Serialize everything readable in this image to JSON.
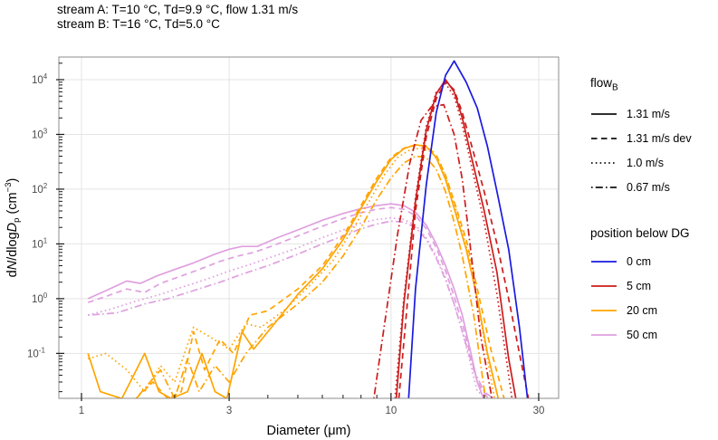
{
  "title_block": {
    "line1": "stream A: T=10 °C, Td=9.9 °C, flow 1.31 m/s",
    "line2": "stream B: T=16 °C, Td=5.0 °C"
  },
  "legend_flow": {
    "title_main": "flow",
    "title_sub": "B",
    "items": [
      {
        "label": "1.31 m/s",
        "dash": "solid"
      },
      {
        "label": "1.31 m/s dev",
        "dash": "dashed"
      },
      {
        "label": "1.0 m/s",
        "dash": "dotted"
      },
      {
        "label": "0.67 m/s",
        "dash": "dotdash"
      }
    ]
  },
  "legend_position": {
    "title": "position below DG",
    "items": [
      {
        "label": "0 cm",
        "color": "#1a1ae0"
      },
      {
        "label": "5 cm",
        "color": "#cc1c1c"
      },
      {
        "label": "20 cm",
        "color": "#ffa400"
      },
      {
        "label": "50 cm",
        "color": "#dfa0df"
      }
    ]
  },
  "chart_data": {
    "type": "line",
    "xlabel": "Diameter (μm)",
    "ylabel_parts": [
      {
        "t": "d"
      },
      {
        "t": "N",
        "style": "italic"
      },
      {
        "t": "/dlog"
      },
      {
        "t": "D",
        "style": "italic"
      },
      {
        "t": "p",
        "pos": "sub"
      },
      {
        "t": " (cm"
      },
      {
        "t": "−3",
        "pos": "sup"
      },
      {
        "t": ")"
      }
    ],
    "xscale": "log",
    "yscale": "log",
    "xlim": [
      0.845,
      34.8
    ],
    "ylim": [
      0.0151,
      25900
    ],
    "xticks_major": [
      1,
      3,
      10,
      30
    ],
    "xtick_labels": [
      "1",
      "3",
      "10",
      "30"
    ],
    "xticks_minor": [
      2,
      4,
      5,
      6,
      7,
      8,
      9,
      20
    ],
    "ytick_exponents": [
      -1,
      0,
      1,
      2,
      3,
      4
    ],
    "grid": "major",
    "colors": {
      "grid": "#e4e4e4",
      "panel_border": "#8c8c8c",
      "tick": "#1a1a1a",
      "tick_label": "#4a4a4a"
    },
    "line_styles": {
      "solid": "",
      "dashed": "6.5,4.5",
      "dotted": "1.6,3.2",
      "dotdash": "1.6,3.2,8,3.2"
    },
    "series": [
      {
        "name": "50cm 1.31 m/s",
        "position": "50 cm",
        "flow": "1.31 m/s",
        "color": "#dfa0df",
        "dash": "solid",
        "x": [
          1.05,
          1.2,
          1.4,
          1.55,
          1.75,
          2,
          2.3,
          2.7,
          3,
          3.3,
          3.7,
          4.3,
          5,
          6,
          7,
          8,
          9,
          10,
          11,
          12,
          13,
          14,
          15,
          16,
          17,
          18,
          19,
          19.9
        ],
        "y": [
          1,
          1.4,
          2.1,
          1.9,
          2.6,
          3.4,
          4.5,
          6.5,
          8,
          9,
          9,
          13,
          18,
          27,
          36,
          44,
          50,
          54,
          50,
          38,
          22,
          10,
          4,
          1.5,
          0.5,
          0.12,
          0.03,
          0.015
        ]
      },
      {
        "name": "50cm 1.31 m/s dev",
        "position": "50 cm",
        "flow": "1.31 m/s dev",
        "color": "#dfa0df",
        "dash": "dashed",
        "x": [
          1.05,
          1.2,
          1.4,
          1.6,
          1.8,
          2.1,
          2.4,
          2.8,
          3.2,
          3.6,
          4.2,
          5,
          6,
          7,
          8,
          9,
          10,
          11,
          12,
          13,
          14,
          15,
          16,
          17,
          18,
          19,
          20.6
        ],
        "y": [
          0.85,
          1.1,
          1.5,
          1.3,
          1.9,
          2.6,
          3.4,
          4.8,
          6,
          7,
          9.5,
          14,
          21,
          29,
          37,
          43,
          46,
          43,
          33,
          19,
          8.5,
          3.2,
          1.1,
          0.35,
          0.1,
          0.03,
          0.015
        ]
      },
      {
        "name": "50cm 1.0 m/s",
        "position": "50 cm",
        "flow": "1.0 m/s",
        "color": "#dfa0df",
        "dash": "dotted",
        "x": [
          1.05,
          1.25,
          1.5,
          1.8,
          2.1,
          2.5,
          3,
          3.5,
          4.2,
          5,
          6,
          7,
          8,
          9,
          10,
          11,
          12,
          13,
          14,
          15,
          16,
          17,
          18,
          19,
          20.9
        ],
        "y": [
          0.5,
          0.65,
          0.9,
          1.2,
          1.6,
          2.2,
          3.2,
          4.2,
          6,
          8.5,
          13,
          18,
          24,
          28,
          30,
          28,
          22,
          13,
          6,
          2.4,
          0.8,
          0.25,
          0.07,
          0.02,
          0.015
        ]
      },
      {
        "name": "50cm 0.67 m/s",
        "position": "50 cm",
        "flow": "0.67 m/s",
        "color": "#dfa0df",
        "dash": "dotdash",
        "x": [
          1.05,
          1.3,
          1.6,
          1.9,
          2.3,
          2.8,
          3.3,
          4,
          5,
          6,
          7,
          8,
          9,
          10,
          11,
          12,
          13,
          14,
          15,
          16,
          17,
          18.5,
          20,
          21.4
        ],
        "y": [
          0.5,
          0.55,
          0.8,
          1,
          1.4,
          2,
          2.8,
          4,
          6.5,
          10,
          14,
          19,
          23,
          26,
          25,
          20,
          12,
          5.5,
          2.2,
          0.8,
          0.25,
          0.05,
          0.02,
          0.015
        ]
      },
      {
        "name": "20cm 1.31 m/s",
        "position": "20 cm",
        "flow": "1.31 m/s",
        "color": "#ffa400",
        "dash": "solid",
        "x": [
          1.05,
          1.15,
          1.35,
          1.6,
          1.78,
          1.95,
          2.2,
          2.45,
          2.7,
          2.95,
          3.3,
          3.6,
          4.2,
          5,
          6,
          7,
          8,
          9,
          10,
          11,
          12,
          13,
          14,
          15,
          16,
          17.5,
          19,
          20.5,
          22.2
        ],
        "y": [
          0.1,
          0.02,
          0.015,
          0.1,
          0.02,
          0.015,
          0.02,
          0.1,
          0.02,
          0.015,
          0.25,
          0.12,
          0.35,
          1.2,
          3.5,
          12,
          45,
          140,
          350,
          550,
          650,
          600,
          380,
          150,
          45,
          8,
          1,
          0.1,
          0.015
        ]
      },
      {
        "name": "20cm 1.31 m/s dev",
        "position": "20 cm",
        "flow": "1.31 m/s dev",
        "color": "#ffa400",
        "dash": "dashed",
        "x": [
          1.5,
          1.7,
          1.9,
          2.1,
          2.3,
          2.5,
          2.8,
          3.1,
          3.5,
          4,
          5,
          6,
          7,
          8,
          9,
          10,
          11,
          12,
          13,
          14,
          15,
          16,
          17.5,
          19,
          21,
          23.2
        ],
        "y": [
          0.015,
          0.03,
          0.015,
          0.02,
          0.25,
          0.05,
          0.18,
          0.1,
          0.5,
          0.6,
          1.5,
          4,
          14,
          50,
          160,
          380,
          560,
          640,
          620,
          420,
          180,
          60,
          12,
          1.5,
          0.12,
          0.015
        ]
      },
      {
        "name": "20cm 1.0 m/s",
        "position": "20 cm",
        "flow": "1.0 m/s",
        "color": "#ffa400",
        "dash": "dotted",
        "x": [
          1.05,
          1.2,
          1.4,
          1.6,
          1.8,
          2,
          2.3,
          2.6,
          3,
          3.4,
          3.8,
          4.5,
          5.5,
          6.5,
          7.5,
          8.5,
          9.5,
          10.5,
          11.5,
          12.5,
          13.5,
          14.5,
          15.5,
          16.5,
          18,
          19.5,
          21.6
        ],
        "y": [
          0.08,
          0.1,
          0.05,
          0.02,
          0.06,
          0.03,
          0.3,
          0.2,
          0.12,
          0.35,
          0.3,
          0.6,
          1.8,
          5,
          18,
          60,
          180,
          380,
          520,
          560,
          480,
          280,
          100,
          30,
          5,
          0.4,
          0.015
        ]
      },
      {
        "name": "20cm 0.67 m/s",
        "position": "20 cm",
        "flow": "0.67 m/s",
        "color": "#ffa400",
        "dash": "dotdash",
        "x": [
          1.5,
          1.8,
          2,
          2.2,
          2.4,
          2.7,
          3,
          3.4,
          4,
          5,
          6,
          7,
          8,
          9,
          10,
          11,
          12,
          13,
          14,
          15,
          16,
          17,
          18.5,
          20.2
        ],
        "y": [
          0.015,
          0.05,
          0.015,
          0.08,
          0.02,
          0.06,
          0.03,
          0.1,
          0.3,
          0.8,
          2,
          6,
          20,
          65,
          160,
          300,
          400,
          380,
          230,
          90,
          25,
          6,
          0.5,
          0.015
        ]
      },
      {
        "name": "5cm 1.31 m/s",
        "position": "5 cm",
        "flow": "1.31 m/s",
        "color": "#cc1c1c",
        "dash": "solid",
        "x": [
          10.4,
          11,
          12,
          13,
          14,
          15,
          16,
          17,
          18,
          20,
          22,
          24,
          25.3
        ],
        "y": [
          0.015,
          0.8,
          60,
          1200,
          5500,
          10000,
          6000,
          2000,
          500,
          40,
          3,
          0.08,
          0.015
        ]
      },
      {
        "name": "5cm 1.31 m/s dev",
        "position": "5 cm",
        "flow": "1.31 m/s dev",
        "color": "#cc1c1c",
        "dash": "dashed",
        "x": [
          10.6,
          11.2,
          12,
          13,
          14,
          15,
          16,
          17,
          18,
          20,
          22,
          24,
          26,
          27.8
        ],
        "y": [
          0.015,
          0.5,
          40,
          900,
          4500,
          9200,
          6500,
          2500,
          800,
          90,
          10,
          1,
          0.1,
          0.015
        ]
      },
      {
        "name": "5cm 1.0 m/s",
        "position": "5 cm",
        "flow": "1.0 m/s",
        "color": "#cc1c1c",
        "dash": "dotted",
        "x": [
          10.3,
          11,
          12,
          13,
          14,
          15,
          16,
          17,
          18,
          20,
          22,
          24.6
        ],
        "y": [
          0.015,
          1,
          70,
          1400,
          6000,
          8500,
          5000,
          1500,
          350,
          25,
          1.2,
          0.015
        ]
      },
      {
        "name": "5cm 0.67 m/s",
        "position": "5 cm",
        "flow": "0.67 m/s",
        "color": "#cc1c1c",
        "dash": "dotdash",
        "x": [
          8.8,
          9.5,
          10.5,
          11.5,
          12.5,
          13.5,
          14.8,
          16,
          17,
          18,
          19.5,
          21.2
        ],
        "y": [
          0.015,
          0.3,
          15,
          300,
          1800,
          3200,
          3500,
          1000,
          150,
          10,
          0.2,
          0.015
        ]
      },
      {
        "name": "0cm 1.31 m/s",
        "position": "0 cm",
        "flow": "1.31 m/s",
        "color": "#1a1ae0",
        "dash": "solid",
        "x": [
          11.4,
          12,
          13,
          14,
          15,
          16,
          17.5,
          19,
          20.5,
          22,
          24,
          26,
          27.6
        ],
        "y": [
          0.015,
          1.5,
          120,
          2500,
          12000,
          22000,
          9000,
          3000,
          600,
          90,
          8,
          0.3,
          0.015
        ]
      }
    ]
  }
}
